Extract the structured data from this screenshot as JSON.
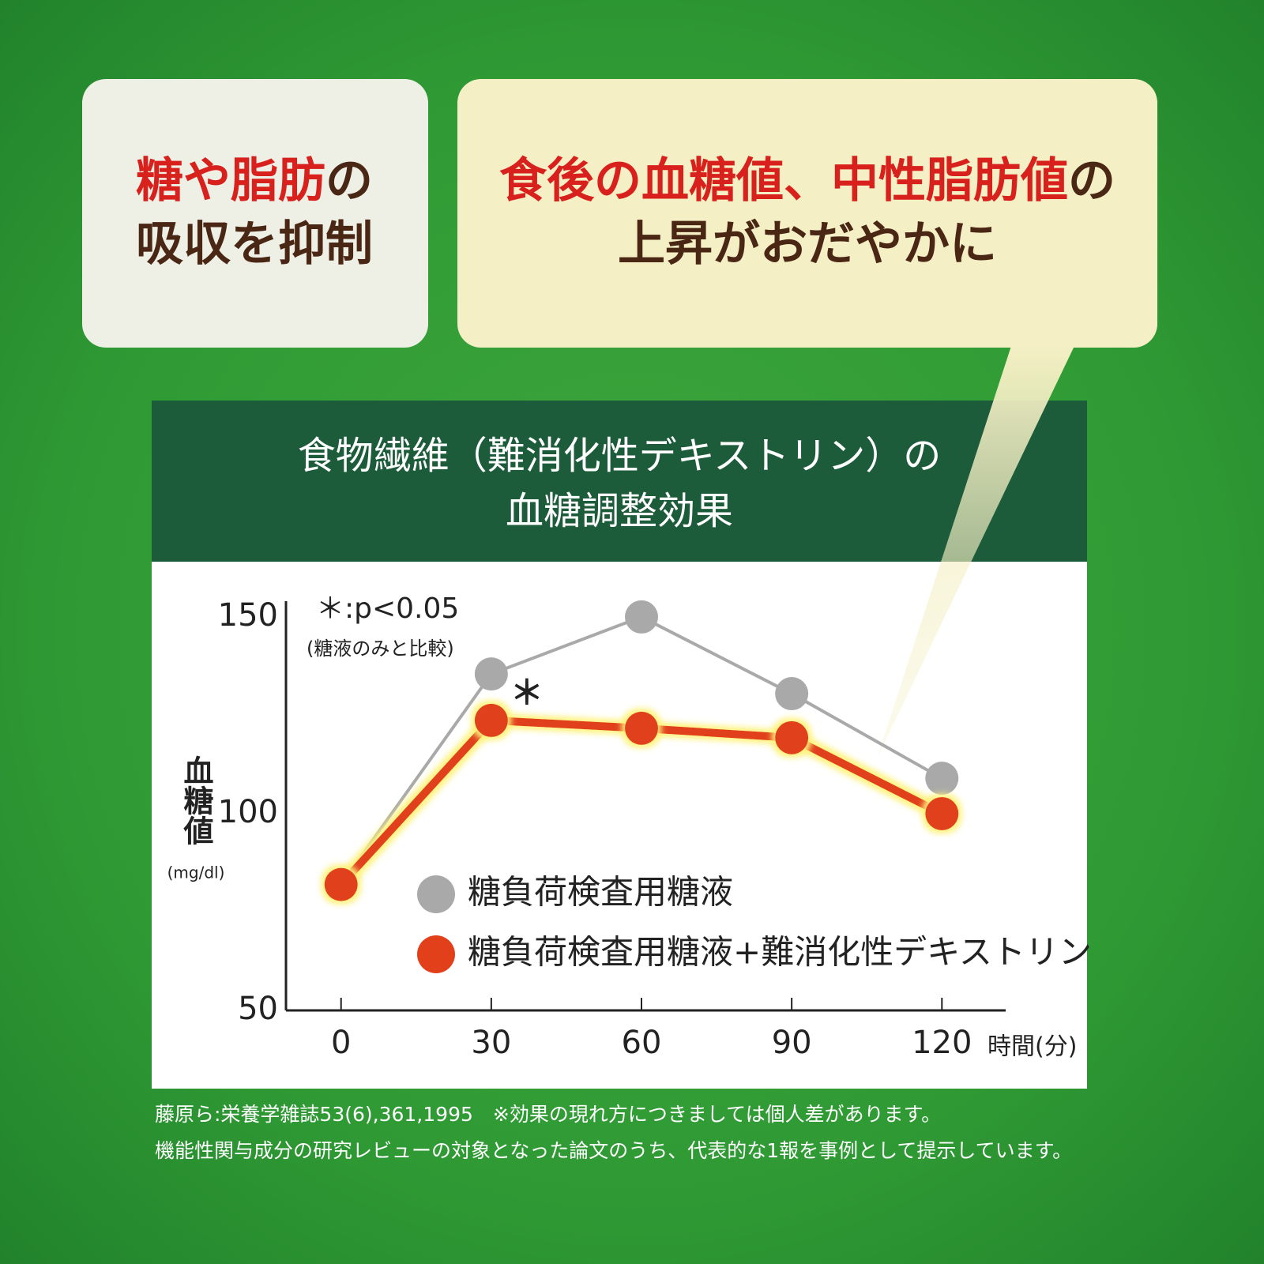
{
  "left_callout": {
    "lines": [
      [
        {
          "text": "糖や脂肪",
          "emphasis": true
        },
        {
          "text": "の",
          "emphasis": false
        }
      ],
      [
        {
          "text": "吸収を抑制",
          "emphasis": false
        }
      ]
    ]
  },
  "right_callout": {
    "lines": [
      [
        {
          "text": "食後の血糖値、中性脂肪値",
          "emphasis": true
        },
        {
          "text": "の",
          "emphasis": false
        }
      ],
      [
        {
          "text": "上昇がおだやかに",
          "emphasis": false
        }
      ]
    ]
  },
  "chart_data": {
    "type": "line",
    "title": [
      "食物繊維（難消化性デキストリン）の",
      "血糖調整効果"
    ],
    "y_label": "血糖値",
    "y_unit": "(mg/dl)",
    "x_label": "時間(分)",
    "annotations": [
      "＊:p<0.05",
      "(糖液のみと比較)"
    ],
    "significance_marker": "＊",
    "x": [
      0,
      30,
      60,
      90,
      120
    ],
    "xlim": [
      -11,
      128
    ],
    "xticks": [
      0,
      30,
      60,
      90,
      120
    ],
    "ylim": [
      50,
      154
    ],
    "yticks": [
      50,
      100,
      150
    ],
    "series": [
      {
        "name": "糖負荷検査用糖液",
        "color": "#a9a9a9",
        "values": [
          82,
          135.5,
          150,
          130.5,
          109
        ]
      },
      {
        "name": "糖負荷検査用糖液+難消化性デキストリン",
        "color": "#e1401b",
        "values": [
          82,
          123.7,
          121.7,
          119.3,
          100
        ]
      }
    ]
  },
  "footnotes": [
    "藤原ら:栄養学雑誌53(6),361,1995　※効果の現れ方につきましては個人差があります。",
    "機能性関与成分の研究レビューの対象となった論文のうち、代表的な1報を事例として提示しています。"
  ]
}
